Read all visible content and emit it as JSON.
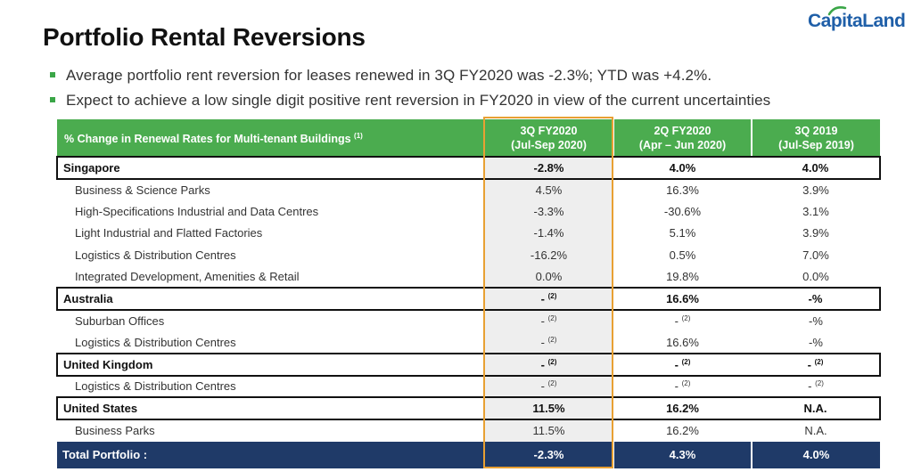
{
  "logo": {
    "text": "CapitaLand"
  },
  "title": "Portfolio Rental Reversions",
  "bullets": [
    "Average portfolio rent reversion for leases renewed in 3Q FY2020 was -2.3%; YTD was +4.2%.",
    "Expect to achieve a low single digit positive rent reversion in FY2020 in view of the current uncertainties"
  ],
  "table": {
    "header": {
      "label": "% Change in Renewal Rates for Multi-tenant Buildings",
      "label_note": "(1)",
      "col1_line1": "3Q FY2020",
      "col1_line2": "(Jul-Sep 2020)",
      "col2_line1": "2Q FY2020",
      "col2_line2": "(Apr – Jun 2020)",
      "col3_line1": "3Q 2019",
      "col3_line2": "(Jul-Sep 2019)"
    },
    "singapore": {
      "label": "Singapore",
      "v1": "-2.8%",
      "v2": "4.0%",
      "v3": "4.0%",
      "rows": [
        {
          "label": "Business & Science Parks",
          "v1": "4.5%",
          "v2": "16.3%",
          "v3": "3.9%"
        },
        {
          "label": "High-Specifications Industrial and Data Centres",
          "v1": "-3.3%",
          "v2": "-30.6%",
          "v3": "3.1%"
        },
        {
          "label": "Light Industrial and Flatted Factories",
          "v1": "-1.4%",
          "v2": "5.1%",
          "v3": "3.9%"
        },
        {
          "label": "Logistics & Distribution Centres",
          "v1": "-16.2%",
          "v2": "0.5%",
          "v3": "7.0%"
        },
        {
          "label": "Integrated Development, Amenities & Retail",
          "v1": "0.0%",
          "v2": "19.8%",
          "v3": "0.0%"
        }
      ]
    },
    "australia": {
      "label": "Australia",
      "v1": "-",
      "v1_note": "(2)",
      "v2": "16.6%",
      "v3": "-%",
      "rows": [
        {
          "label": "Suburban Offices",
          "v1": "-",
          "v1_note": "(2)",
          "v2": "-",
          "v2_note": "(2)",
          "v3": "-%"
        },
        {
          "label": "Logistics & Distribution Centres",
          "v1": "-",
          "v1_note": "(2)",
          "v2": "16.6%",
          "v3": "-%"
        }
      ]
    },
    "uk": {
      "label": "United Kingdom",
      "v1": "-",
      "v1_note": "(2)",
      "v2": "-",
      "v2_note": "(2)",
      "v3": "-",
      "v3_note": "(2)",
      "rows": [
        {
          "label": "Logistics & Distribution Centres",
          "v1": "-",
          "v1_note": "(2)",
          "v2": "-",
          "v2_note": "(2)",
          "v3": "-",
          "v3_note": "(2)"
        }
      ]
    },
    "us": {
      "label": "United States",
      "v1": "11.5%",
      "v2": "16.2%",
      "v3": "N.A.",
      "rows": [
        {
          "label": "Business Parks",
          "v1": "11.5%",
          "v2": "16.2%",
          "v3": "N.A."
        }
      ]
    },
    "total": {
      "label": "Total Portfolio :",
      "v1": "-2.3%",
      "v2": "4.3%",
      "v3": "4.0%"
    }
  },
  "colors": {
    "header_green": "#4bac4f",
    "total_navy": "#1f3a68",
    "highlight_orange": "#e8a033",
    "bullet_green": "#3aa647",
    "logo_blue": "#1f5fa8"
  }
}
